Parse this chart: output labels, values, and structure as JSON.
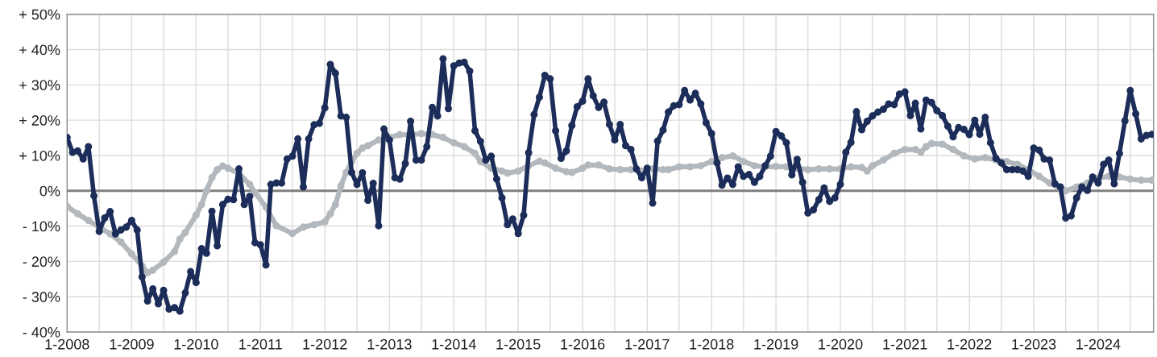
{
  "chart_data": {
    "type": "line",
    "marker": "circle",
    "line_style": "solid",
    "grid": true,
    "legend": false,
    "x": [
      "2008-01",
      "2008-02",
      "2008-03",
      "2008-04",
      "2008-05",
      "2008-06",
      "2008-07",
      "2008-08",
      "2008-09",
      "2008-10",
      "2008-11",
      "2008-12",
      "2009-01",
      "2009-02",
      "2009-03",
      "2009-04",
      "2009-05",
      "2009-06",
      "2009-07",
      "2009-08",
      "2009-09",
      "2009-10",
      "2009-11",
      "2009-12",
      "2010-01",
      "2010-02",
      "2010-03",
      "2010-04",
      "2010-05",
      "2010-06",
      "2010-07",
      "2010-08",
      "2010-09",
      "2010-10",
      "2010-11",
      "2010-12",
      "2011-01",
      "2011-02",
      "2011-03",
      "2011-04",
      "2011-05",
      "2011-06",
      "2011-07",
      "2011-08",
      "2011-09",
      "2011-10",
      "2011-11",
      "2011-12",
      "2012-01",
      "2012-02",
      "2012-03",
      "2012-04",
      "2012-05",
      "2012-06",
      "2012-07",
      "2012-08",
      "2012-09",
      "2012-10",
      "2012-11",
      "2012-12",
      "2013-01",
      "2013-02",
      "2013-03",
      "2013-04",
      "2013-05",
      "2013-06",
      "2013-07",
      "2013-08",
      "2013-09",
      "2013-10",
      "2013-11",
      "2013-12",
      "2014-01",
      "2014-02",
      "2014-03",
      "2014-04",
      "2014-05",
      "2014-06",
      "2014-07",
      "2014-08",
      "2014-09",
      "2014-10",
      "2014-11",
      "2014-12",
      "2015-01",
      "2015-02",
      "2015-03",
      "2015-04",
      "2015-05",
      "2015-06",
      "2015-07",
      "2015-08",
      "2015-09",
      "2015-10",
      "2015-11",
      "2015-12",
      "2016-01",
      "2016-02",
      "2016-03",
      "2016-04",
      "2016-05",
      "2016-06",
      "2016-07",
      "2016-08",
      "2016-09",
      "2016-10",
      "2016-11",
      "2016-12",
      "2017-01",
      "2017-02",
      "2017-03",
      "2017-04",
      "2017-05",
      "2017-06",
      "2017-07",
      "2017-08",
      "2017-09",
      "2017-10",
      "2017-11",
      "2017-12",
      "2018-01",
      "2018-02",
      "2018-03",
      "2018-04",
      "2018-05",
      "2018-06",
      "2018-07",
      "2018-08",
      "2018-09",
      "2018-10",
      "2018-11",
      "2018-12",
      "2019-01",
      "2019-02",
      "2019-03",
      "2019-04",
      "2019-05",
      "2019-06",
      "2019-07",
      "2019-08",
      "2019-09",
      "2019-10",
      "2019-11",
      "2019-12",
      "2020-01",
      "2020-02",
      "2020-03",
      "2020-04",
      "2020-05",
      "2020-06",
      "2020-07",
      "2020-08",
      "2020-09",
      "2020-10",
      "2020-11",
      "2020-12",
      "2021-01",
      "2021-02",
      "2021-03",
      "2021-04",
      "2021-05",
      "2021-06",
      "2021-07",
      "2021-08",
      "2021-09",
      "2021-10",
      "2021-11",
      "2021-12",
      "2022-01",
      "2022-02",
      "2022-03",
      "2022-04",
      "2022-05",
      "2022-06",
      "2022-07",
      "2022-08",
      "2022-09",
      "2022-10",
      "2022-11",
      "2022-12",
      "2023-01",
      "2023-02",
      "2023-03",
      "2023-04",
      "2023-05",
      "2023-06",
      "2023-07",
      "2023-08",
      "2023-09",
      "2023-10",
      "2023-11",
      "2023-12",
      "2024-01",
      "2024-02",
      "2024-03",
      "2024-04",
      "2024-05",
      "2024-06",
      "2024-07",
      "2024-08",
      "2024-09",
      "2024-10",
      "2024-11"
    ],
    "series": [
      {
        "color": "#b3b8bd",
        "x": [
          "2008-01",
          "2008-03",
          "2008-05",
          "2008-07",
          "2008-09",
          "2008-11",
          "2009-01",
          "2009-03",
          "2009-04",
          "2009-05",
          "2009-07",
          "2009-09",
          "2009-10",
          "2009-11",
          "2010-01",
          "2010-02",
          "2010-03",
          "2010-04",
          "2010-05",
          "2010-06",
          "2010-07",
          "2010-09",
          "2010-11",
          "2010-12",
          "2011-02",
          "2011-04",
          "2011-07",
          "2011-09",
          "2011-11",
          "2012-01",
          "2012-02",
          "2012-03",
          "2012-04",
          "2012-05",
          "2012-06",
          "2012-07",
          "2012-08",
          "2012-09",
          "2012-11",
          "2013-01",
          "2013-03",
          "2013-05",
          "2013-07",
          "2013-09",
          "2013-11",
          "2014-01",
          "2014-03",
          "2014-05",
          "2014-06",
          "2014-08",
          "2014-10",
          "2014-11",
          "2015-01",
          "2015-03",
          "2015-05",
          "2015-06",
          "2015-08",
          "2015-10",
          "2015-11",
          "2016-01",
          "2016-02",
          "2016-04",
          "2016-06",
          "2016-08",
          "2016-10",
          "2016-12",
          "2017-02",
          "2017-04",
          "2017-05",
          "2017-07",
          "2017-09",
          "2017-11",
          "2018-01",
          "2018-03",
          "2018-05",
          "2018-07",
          "2018-09",
          "2018-11",
          "2019-01",
          "2019-03",
          "2019-05",
          "2019-07",
          "2019-09",
          "2019-11",
          "2020-01",
          "2020-03",
          "2020-05",
          "2020-06",
          "2020-07",
          "2020-09",
          "2020-11",
          "2021-01",
          "2021-03",
          "2021-04",
          "2021-05",
          "2021-06",
          "2021-08",
          "2021-10",
          "2021-12",
          "2022-02",
          "2022-04",
          "2022-06",
          "2022-08",
          "2022-10",
          "2022-12",
          "2023-02",
          "2023-04",
          "2023-06",
          "2023-07",
          "2023-09",
          "2023-11",
          "2024-01",
          "2024-03",
          "2024-05",
          "2024-07",
          "2024-09",
          "2024-11"
        ],
        "values": [
          -4.4,
          -6.5,
          -8.4,
          -10.3,
          -12.2,
          -14.5,
          -17.9,
          -21.3,
          -23.2,
          -22.5,
          -20.2,
          -17.2,
          -13.7,
          -11.8,
          -6.9,
          -3.9,
          0,
          3.7,
          6.0,
          7.0,
          6.4,
          4.9,
          1.8,
          -0.5,
          -4.6,
          -9.9,
          -12.1,
          -10.3,
          -9.6,
          -8.8,
          -6.5,
          -3.9,
          1.4,
          5.2,
          8.3,
          10.6,
          12.1,
          12.8,
          14.4,
          15.1,
          15.9,
          15.9,
          16.2,
          15.9,
          15.1,
          13.6,
          12.5,
          10.6,
          8.3,
          6.4,
          5.6,
          5.0,
          5.6,
          7.1,
          8.4,
          7.9,
          6.4,
          5.4,
          5.2,
          6.4,
          7.3,
          7.3,
          6.2,
          6.0,
          6.0,
          5.6,
          6.2,
          6.0,
          6.0,
          6.8,
          6.8,
          7.1,
          8.3,
          9.4,
          9.9,
          8.3,
          7.1,
          6.8,
          6.9,
          6.8,
          6.4,
          6.0,
          6.2,
          6.2,
          6.2,
          6.8,
          6.6,
          5.6,
          7.1,
          8.7,
          10.6,
          11.7,
          11.7,
          10.9,
          12.5,
          13.4,
          13.2,
          11.7,
          9.9,
          9.0,
          9.4,
          8.7,
          8.3,
          7.5,
          6.0,
          4.1,
          2.2,
          0.7,
          0,
          1.1,
          2.2,
          3.6,
          4.1,
          3.9,
          3.3,
          3.0,
          3.0
        ]
      },
      {
        "color": "#1c2d5a",
        "values": [
          15.1,
          10.9,
          11.3,
          9.0,
          12.5,
          -1.4,
          -11.5,
          -7.7,
          -5.9,
          -12.2,
          -11.1,
          -10.3,
          -8.4,
          -11.1,
          -24.4,
          -31.2,
          -27.8,
          -32.0,
          -28.2,
          -33.5,
          -33.1,
          -34.1,
          -28.9,
          -22.9,
          -26.0,
          -16.4,
          -17.7,
          -5.8,
          -15.6,
          -3.9,
          -2.4,
          -2.5,
          6.2,
          -3.9,
          -1.6,
          -14.7,
          -15.3,
          -21.0,
          1.8,
          2.2,
          2.2,
          9.0,
          9.8,
          14.7,
          1.1,
          14.7,
          18.7,
          19.1,
          23.5,
          35.8,
          33.3,
          21.2,
          20.8,
          5.2,
          1.8,
          5.1,
          -2.7,
          2.1,
          -9.9,
          17.5,
          14.4,
          3.7,
          3.3,
          7.7,
          19.7,
          8.7,
          8.7,
          12.5,
          23.6,
          21.2,
          37.4,
          23.3,
          35.4,
          36.2,
          36.4,
          33.9,
          17.0,
          14.0,
          8.7,
          9.8,
          3.3,
          -2.0,
          -9.6,
          -8.0,
          -12.1,
          -6.9,
          10.8,
          21.6,
          26.5,
          32.7,
          31.7,
          17.0,
          9.2,
          11.3,
          18.5,
          23.8,
          25.4,
          31.7,
          26.9,
          23.6,
          25.1,
          18.8,
          14.4,
          18.8,
          12.8,
          11.7,
          6.2,
          3.7,
          6.4,
          -3.5,
          14.1,
          17.2,
          22.3,
          24.1,
          24.4,
          28.4,
          25.7,
          27.6,
          24.6,
          19.3,
          16.2,
          7.9,
          1.6,
          3.6,
          1.8,
          6.8,
          4.1,
          4.6,
          2.4,
          4.1,
          7.1,
          9.8,
          16.8,
          15.5,
          13.6,
          4.5,
          8.9,
          2.4,
          -6.3,
          -5.4,
          -2.5,
          0.8,
          -3.0,
          -2.0,
          1.8,
          10.9,
          13.7,
          22.4,
          17.3,
          19.7,
          21.2,
          22.3,
          23.1,
          24.6,
          24.4,
          27.4,
          28.0,
          21.3,
          24.8,
          17.5,
          25.7,
          25.0,
          22.7,
          21.3,
          18.3,
          15.3,
          17.9,
          17.4,
          15.9,
          20.0,
          16.0,
          20.8,
          13.6,
          9.2,
          7.9,
          6.0,
          6.0,
          6.0,
          5.6,
          4.1,
          12.1,
          11.5,
          9.0,
          8.7,
          2.0,
          1.1,
          -7.7,
          -7.1,
          -2.0,
          1.1,
          0.1,
          3.9,
          2.2,
          7.5,
          8.7,
          2.0,
          10.6,
          19.8,
          28.4,
          21.8,
          14.7,
          15.7,
          16.0
        ]
      }
    ],
    "xlim": [
      "2008-01",
      "2024-11-10"
    ],
    "xticks": [
      {
        "value": "2008-01",
        "label": "1-2008"
      },
      {
        "value": "2008-07",
        "label": null
      },
      {
        "value": "2009-01",
        "label": "1-2009"
      },
      {
        "value": "2009-07",
        "label": null
      },
      {
        "value": "2010-01",
        "label": "1-2010"
      },
      {
        "value": "2010-07",
        "label": null
      },
      {
        "value": "2011-01",
        "label": "1-2011"
      },
      {
        "value": "2011-07",
        "label": null
      },
      {
        "value": "2012-01",
        "label": "1-2012"
      },
      {
        "value": "2012-07",
        "label": null
      },
      {
        "value": "2013-01",
        "label": "1-2013"
      },
      {
        "value": "2013-07",
        "label": null
      },
      {
        "value": "2014-01",
        "label": "1-2014"
      },
      {
        "value": "2014-07",
        "label": null
      },
      {
        "value": "2015-01",
        "label": "1-2015"
      },
      {
        "value": "2015-07",
        "label": null
      },
      {
        "value": "2016-01",
        "label": "1-2016"
      },
      {
        "value": "2016-07",
        "label": null
      },
      {
        "value": "2017-01",
        "label": "1-2017"
      },
      {
        "value": "2017-07",
        "label": null
      },
      {
        "value": "2018-01",
        "label": "1-2018"
      },
      {
        "value": "2018-07",
        "label": null
      },
      {
        "value": "2019-01",
        "label": "1-2019"
      },
      {
        "value": "2019-07",
        "label": null
      },
      {
        "value": "2020-01",
        "label": "1-2020"
      },
      {
        "value": "2020-07",
        "label": null
      },
      {
        "value": "2021-01",
        "label": "1-2021"
      },
      {
        "value": "2021-07",
        "label": null
      },
      {
        "value": "2022-01",
        "label": "1-2022"
      },
      {
        "value": "2022-07",
        "label": null
      },
      {
        "value": "2023-01",
        "label": "1-2023"
      },
      {
        "value": "2023-07",
        "label": null
      },
      {
        "value": "2024-01",
        "label": "1-2024"
      },
      {
        "value": "2024-07",
        "label": null
      }
    ],
    "ylim": [
      -40,
      50
    ],
    "yticks": [
      {
        "value": -40,
        "label": "- 40%"
      },
      {
        "value": -30,
        "label": "- 30%"
      },
      {
        "value": -20,
        "label": "- 20%"
      },
      {
        "value": -10,
        "label": "- 10%"
      },
      {
        "value": 0,
        "label": "0%"
      },
      {
        "value": 10,
        "label": "+ 10%"
      },
      {
        "value": 20,
        "label": "+ 20%"
      },
      {
        "value": 30,
        "label": "+ 30%"
      },
      {
        "value": 40,
        "label": "+ 40%"
      },
      {
        "value": 50,
        "label": "+ 50%"
      }
    ],
    "ref_lines": [
      {
        "axis": "y",
        "value": 0,
        "color": "#808080",
        "line_style": "solid"
      }
    ]
  }
}
